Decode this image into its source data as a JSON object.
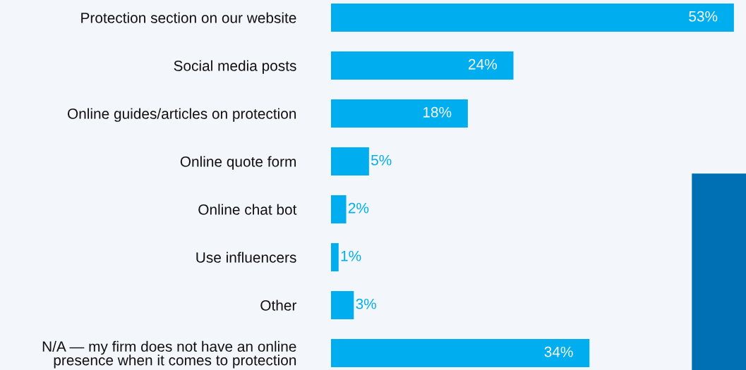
{
  "chart_data": {
    "type": "bar",
    "orientation": "horizontal",
    "categories": [
      "Protection section on our website",
      "Social media posts",
      "Online guides/articles on protection",
      "Online quote form",
      "Online chat bot",
      "Use influencers",
      "Other",
      "N/A — my firm does not have an online\npresence when it comes to protection"
    ],
    "values": [
      53,
      24,
      18,
      5,
      2,
      1,
      3,
      34
    ],
    "value_labels": [
      "53%",
      "24%",
      "18%",
      "5%",
      "2%",
      "1%",
      "3%",
      "34%"
    ],
    "color": "#00aeef",
    "grid": false
  }
}
